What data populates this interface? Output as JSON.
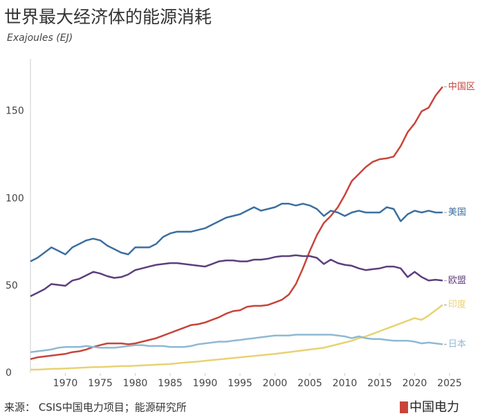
{
  "chart_data": {
    "type": "line",
    "title": "世界最大经济体的能源消耗",
    "subtitle": "Exajoules (EJ)",
    "source": "来源： CSIS中国电力项目；能源研究所",
    "brand": "中国电力",
    "x": [
      1965,
      1966,
      1967,
      1968,
      1969,
      1970,
      1971,
      1972,
      1973,
      1974,
      1975,
      1976,
      1977,
      1978,
      1979,
      1980,
      1981,
      1982,
      1983,
      1984,
      1985,
      1986,
      1987,
      1988,
      1989,
      1990,
      1991,
      1992,
      1993,
      1994,
      1995,
      1996,
      1997,
      1998,
      1999,
      2000,
      2001,
      2002,
      2003,
      2004,
      2005,
      2006,
      2007,
      2008,
      2009,
      2010,
      2011,
      2012,
      2013,
      2014,
      2015,
      2016,
      2017,
      2018,
      2019,
      2020,
      2021,
      2022,
      2023,
      2024
    ],
    "series": [
      {
        "name": "中国区",
        "color": "#c8443a",
        "values": [
          8,
          9,
          9.5,
          10,
          10.5,
          11,
          12,
          12.5,
          13.5,
          15,
          16,
          17,
          17,
          17,
          16.5,
          17,
          18,
          19,
          20,
          21.5,
          23,
          24.5,
          26,
          27.5,
          28,
          29,
          30.5,
          32,
          34,
          35.5,
          36,
          38,
          38.5,
          38.5,
          39,
          40.5,
          42,
          45,
          51,
          60,
          70,
          79,
          86,
          90,
          95,
          102,
          110,
          114,
          118,
          121,
          122.5,
          123,
          124,
          130,
          138,
          143,
          150,
          152,
          159,
          164
        ]
      },
      {
        "name": "美国",
        "color": "#3b6fa0",
        "values": [
          64,
          66,
          69,
          72,
          70,
          68,
          72,
          74,
          76,
          77,
          76,
          73,
          71,
          69,
          68,
          72,
          72,
          72,
          74,
          78,
          80,
          81,
          81,
          81,
          82,
          83,
          85,
          87,
          89,
          90,
          91,
          93,
          95,
          93,
          94,
          95,
          97,
          97,
          96,
          97,
          96,
          94,
          90,
          93,
          92,
          90,
          92,
          93,
          92,
          92,
          92,
          95,
          94,
          87,
          91,
          93,
          92,
          93,
          92,
          92
        ]
      },
      {
        "name": "欧盟",
        "color": "#5b3f7c",
        "values": [
          44,
          46,
          48,
          51,
          50.5,
          50,
          53,
          54,
          56,
          58,
          57,
          55.5,
          54.5,
          55,
          56.5,
          59,
          60,
          61,
          62,
          62.5,
          63,
          63,
          62.5,
          62,
          61.5,
          61,
          62.5,
          64,
          64.5,
          64.5,
          64,
          64,
          65,
          65,
          65.5,
          66.5,
          67,
          67,
          67.5,
          67,
          67,
          66,
          62.5,
          65,
          63,
          62,
          61.5,
          60,
          59,
          59.5,
          60,
          61,
          61,
          60,
          55,
          58,
          55,
          53,
          53.5,
          53
        ]
      },
      {
        "name": "印度",
        "color": "#e8d272",
        "values": [
          2,
          2,
          2.2,
          2.4,
          2.5,
          2.6,
          2.8,
          3,
          3.2,
          3.4,
          3.5,
          3.6,
          3.8,
          4,
          4,
          4.2,
          4.4,
          4.6,
          4.8,
          5,
          5.2,
          5.6,
          6,
          6.3,
          6.6,
          7,
          7.4,
          7.8,
          8.2,
          8.6,
          9,
          9.4,
          9.8,
          10.2,
          10.6,
          11,
          11.5,
          12,
          12.5,
          13,
          13.5,
          14,
          14.5,
          15.5,
          16.5,
          17.5,
          18.5,
          20,
          21,
          22.5,
          24,
          25.5,
          27,
          28.5,
          30,
          31.5,
          30.5,
          33,
          36,
          39
        ]
      },
      {
        "name": "日本",
        "color": "#8fb9d4",
        "values": [
          12,
          12.5,
          13,
          13.5,
          14.5,
          15,
          15,
          15,
          15.5,
          15,
          14.5,
          14.5,
          14.5,
          15,
          15.5,
          16,
          16,
          15.5,
          15.5,
          15.5,
          15,
          15,
          15,
          15.5,
          16.5,
          17,
          17.5,
          18,
          18,
          18.5,
          19,
          19.5,
          20,
          20.5,
          21,
          21.5,
          21.5,
          21.5,
          22,
          22,
          22,
          22,
          22,
          22,
          21.5,
          21,
          20,
          21,
          20,
          19.5,
          19.5,
          19,
          18.5,
          18.5,
          18.5,
          18,
          17,
          17.5,
          17,
          16.5
        ]
      }
    ],
    "xlim": [
      1965,
      2025
    ],
    "xticks": [
      1970,
      1975,
      1980,
      1985,
      1990,
      1995,
      2000,
      2005,
      2010,
      2015,
      2020,
      2025
    ],
    "ylim": [
      0,
      180
    ],
    "yticks": [
      0,
      50,
      100,
      150
    ],
    "grid": false
  }
}
